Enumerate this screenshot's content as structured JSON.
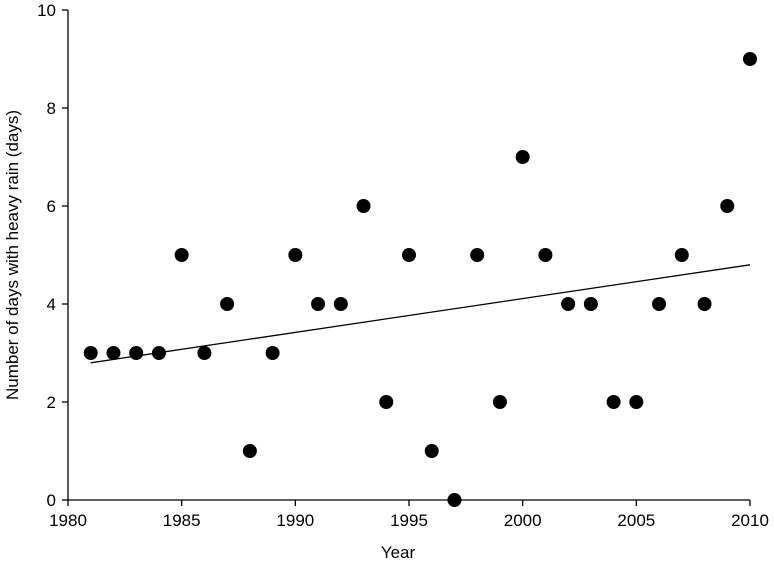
{
  "chart_data": {
    "type": "scatter",
    "xlabel": "Year",
    "ylabel": "Number of days with heavy rain (days)",
    "x": [
      1981,
      1982,
      1983,
      1984,
      1985,
      1986,
      1987,
      1988,
      1989,
      1990,
      1991,
      1992,
      1993,
      1994,
      1995,
      1996,
      1997,
      1998,
      1999,
      2000,
      2001,
      2002,
      2003,
      2004,
      2005,
      2006,
      2007,
      2008,
      2009,
      2010
    ],
    "values": [
      3,
      3,
      3,
      3,
      5,
      3,
      4,
      1,
      3,
      5,
      4,
      4,
      6,
      2,
      5,
      1,
      0,
      5,
      2,
      7,
      5,
      4,
      4,
      2,
      2,
      4,
      5,
      4,
      6,
      9
    ],
    "color": "#000000",
    "trend": {
      "x": [
        1981,
        2010
      ],
      "y": [
        2.8,
        4.8
      ]
    },
    "xlim": [
      1980,
      2010
    ],
    "xticks": [
      1980,
      1985,
      1990,
      1995,
      2000,
      2005,
      2010
    ],
    "ylim": [
      0,
      10
    ],
    "yticks": [
      0,
      2,
      4,
      6,
      8,
      10
    ],
    "grid": false
  }
}
